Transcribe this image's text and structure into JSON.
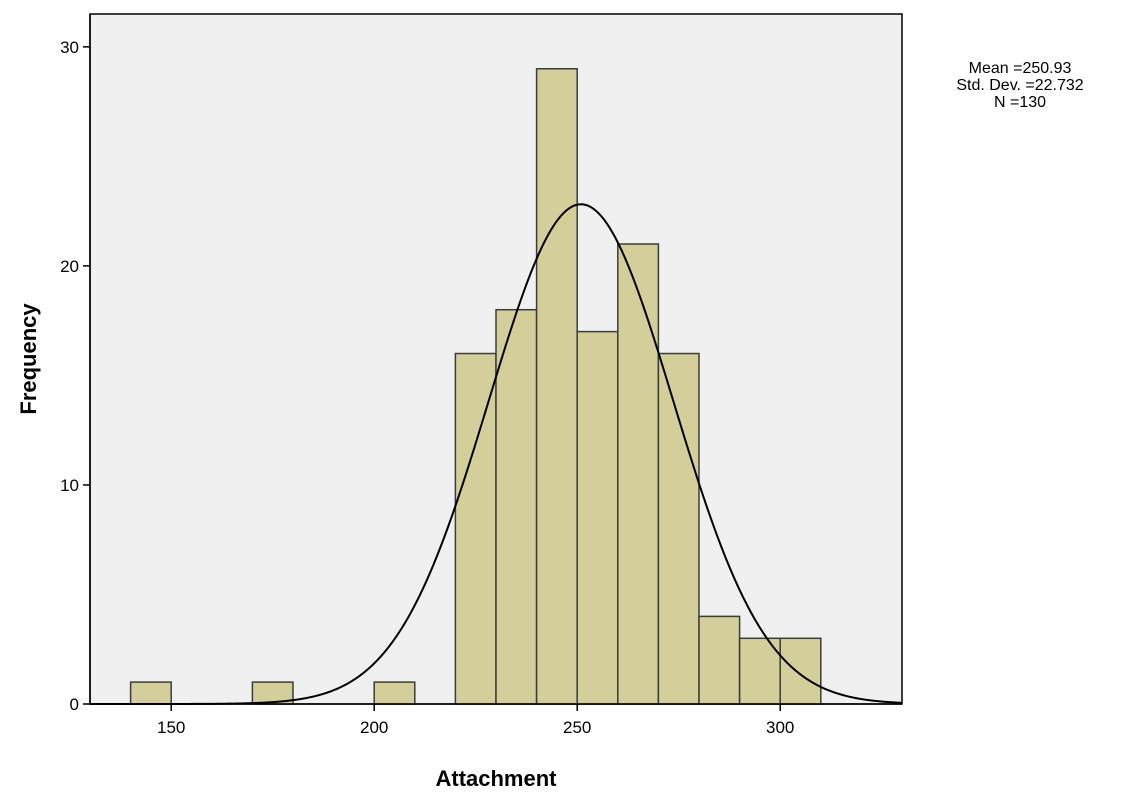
{
  "chart_data": {
    "type": "bar",
    "subtype": "histogram",
    "xlabel": "Attachment",
    "ylabel": "Frequency",
    "xlim": [
      130,
      330
    ],
    "ylim": [
      0,
      31.5
    ],
    "xticks": [
      150,
      200,
      250,
      300
    ],
    "yticks": [
      0,
      10,
      20,
      30
    ],
    "grid": false,
    "bins": [
      {
        "start": 140,
        "end": 150,
        "count": 1
      },
      {
        "start": 170,
        "end": 180,
        "count": 1
      },
      {
        "start": 200,
        "end": 210,
        "count": 1
      },
      {
        "start": 220,
        "end": 230,
        "count": 16
      },
      {
        "start": 230,
        "end": 240,
        "count": 18
      },
      {
        "start": 240,
        "end": 250,
        "count": 29
      },
      {
        "start": 250,
        "end": 260,
        "count": 17
      },
      {
        "start": 260,
        "end": 270,
        "count": 21
      },
      {
        "start": 270,
        "end": 280,
        "count": 16
      },
      {
        "start": 280,
        "end": 290,
        "count": 4
      },
      {
        "start": 290,
        "end": 300,
        "count": 3
      },
      {
        "start": 300,
        "end": 310,
        "count": 3
      }
    ],
    "normal_curve": {
      "mean": 250.93,
      "std_dev": 22.732,
      "n": 130,
      "bin_width": 10
    },
    "stats_legend": {
      "placement": "top-right",
      "lines": [
        "Mean =250.93",
        "Std. Dev. =22.732",
        "N =130"
      ]
    },
    "colors": {
      "plot_background": "#f0f0f0",
      "bar_fill": "#d3ce9a",
      "bar_stroke": "#3c3c3c",
      "curve": "#000000"
    }
  }
}
